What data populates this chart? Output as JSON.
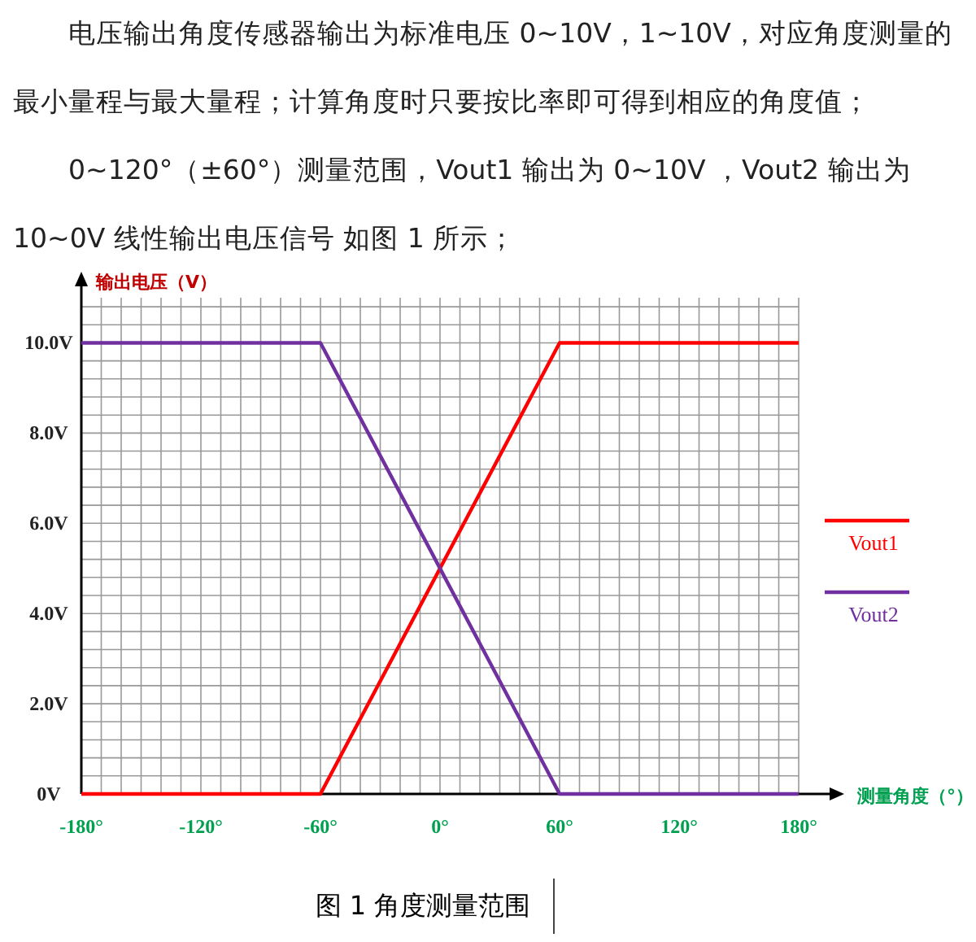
{
  "chart_data": {
    "type": "line",
    "annotations": [
      "电压输出角度传感器输出为标准电压 0~10V，1~10V，对应角度测量的最小量程与最大量程；计算角度时只要按比率即可得到相应的角度值；",
      "0~120°（±60°）测量范围，Vout1 输出为 0~10V ，Vout2 输出为 10~0V 线性输出电压信号 如图 1 所示；",
      "图 1  角度测量范围"
    ],
    "ylabel": "输出电压（V）",
    "xlabel": "测量角度（°）",
    "x": [
      -180,
      -60,
      60,
      180
    ],
    "series": [
      {
        "name": "Vout1",
        "color": "#ff0000",
        "values": [
          0,
          0,
          10,
          10
        ]
      },
      {
        "name": "Vout2",
        "color": "#7030a0",
        "values": [
          10,
          10,
          0,
          0
        ]
      }
    ],
    "xlim": [
      -180,
      180
    ],
    "ylim": [
      0,
      11
    ],
    "xticks": [
      {
        "value": -180,
        "label": "-180°"
      },
      {
        "value": -120,
        "label": "-120°"
      },
      {
        "value": -60,
        "label": "-60°"
      },
      {
        "value": 0,
        "label": "0°"
      },
      {
        "value": 60,
        "label": "60°"
      },
      {
        "value": 120,
        "label": "120°"
      },
      {
        "value": 180,
        "label": "180°"
      }
    ],
    "yticks": [
      {
        "value": 0,
        "label": "0V"
      },
      {
        "value": 2,
        "label": "2.0V"
      },
      {
        "value": 4,
        "label": "4.0V"
      },
      {
        "value": 6,
        "label": "6.0V"
      },
      {
        "value": 8,
        "label": "8.0V"
      },
      {
        "value": 10,
        "label": "10.0V"
      }
    ],
    "grid": true,
    "legend": "right",
    "line_style": "solid"
  }
}
